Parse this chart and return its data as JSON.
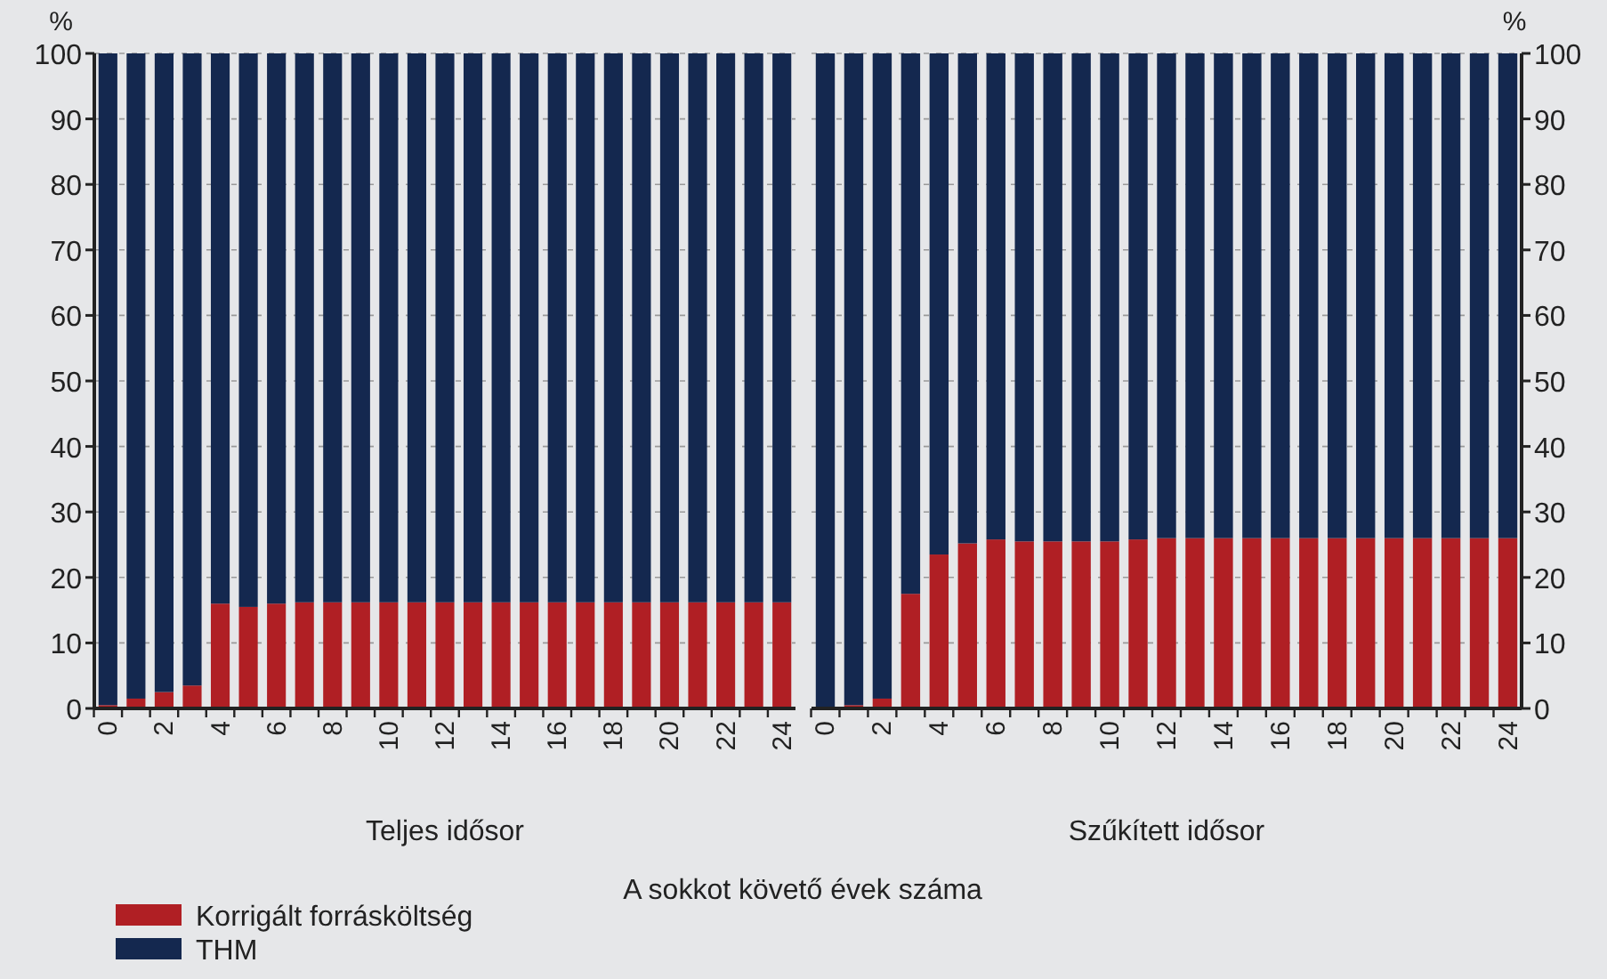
{
  "chart_data": [
    {
      "type": "bar",
      "stacked": true,
      "ylabel": "%",
      "xlabel": "Teljes idősor",
      "annotations": [
        "A sokkot követő évek száma"
      ],
      "legend": "bottom left",
      "grid": "y",
      "categories": [
        "0",
        null,
        "2",
        null,
        "4",
        null,
        "6",
        null,
        "8",
        null,
        "10",
        null,
        "12",
        null,
        "14",
        null,
        "16",
        null,
        "18",
        null,
        "20",
        null,
        "22",
        null,
        "24"
      ],
      "ylim": [
        0,
        100
      ],
      "yticks": [
        0,
        10,
        20,
        30,
        40,
        50,
        60,
        70,
        80,
        90,
        100
      ],
      "series": [
        {
          "name": "Korrigált forrásköltség",
          "color": "#b01f24",
          "values": [
            0.5,
            1.5,
            2.5,
            3.5,
            16,
            15.5,
            16,
            16.2,
            16.2,
            16.2,
            16.2,
            16.2,
            16.2,
            16.2,
            16.2,
            16.2,
            16.2,
            16.2,
            16.2,
            16.2,
            16.2,
            16.2,
            16.2,
            16.2,
            16.2
          ]
        },
        {
          "name": "THM",
          "color": "#14284f",
          "values": [
            99.5,
            98.5,
            97.5,
            96.5,
            84,
            84.5,
            84,
            83.8,
            83.8,
            83.8,
            83.8,
            83.8,
            83.8,
            83.8,
            83.8,
            83.8,
            83.8,
            83.8,
            83.8,
            83.8,
            83.8,
            83.8,
            83.8,
            83.8,
            83.8
          ]
        }
      ]
    },
    {
      "type": "bar",
      "stacked": true,
      "ylabel": "%",
      "xlabel": "Szűkített idősor",
      "grid": "y",
      "categories": [
        "0",
        null,
        "2",
        null,
        "4",
        null,
        "6",
        null,
        "8",
        null,
        "10",
        null,
        "12",
        null,
        "14",
        null,
        "16",
        null,
        "18",
        null,
        "20",
        null,
        "22",
        null,
        "24"
      ],
      "ylim": [
        0,
        100
      ],
      "yticks": [
        0,
        10,
        20,
        30,
        40,
        50,
        60,
        70,
        80,
        90,
        100
      ],
      "series": [
        {
          "color": "#b01f24",
          "values": [
            null,
            0.5,
            1.5,
            17.5,
            23.5,
            25.2,
            25.8,
            25.5,
            25.5,
            25.5,
            25.5,
            25.8,
            26,
            26,
            26,
            26,
            26,
            26,
            26,
            26,
            26,
            26,
            26,
            26,
            26
          ]
        },
        {
          "color": "#14284f",
          "values": [
            100,
            99.5,
            98.5,
            82.5,
            76.5,
            74.8,
            74.2,
            74.5,
            74.5,
            74.5,
            74.5,
            74.2,
            74,
            74,
            74,
            74,
            74,
            74,
            74,
            74,
            74,
            74,
            74,
            74,
            74
          ]
        }
      ]
    }
  ]
}
